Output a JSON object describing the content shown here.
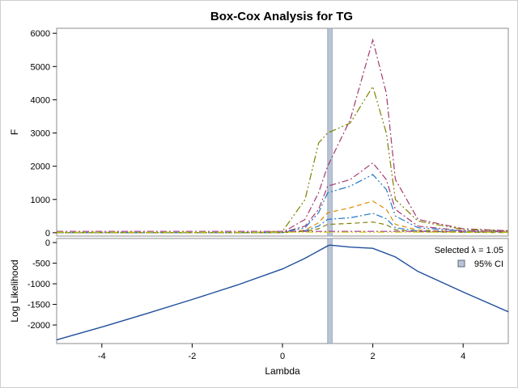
{
  "chart_data": [
    {
      "panel": "top",
      "type": "line",
      "title": "Box-Cox Analysis for TG",
      "ylabel": "F",
      "xlim": [
        -5,
        5
      ],
      "ylim": [
        -100,
        6150
      ],
      "yticks": [
        "0",
        "1000",
        "2000",
        "3000",
        "4000",
        "5000",
        "6000"
      ],
      "yticks_values": [
        0,
        1000,
        2000,
        3000,
        4000,
        5000,
        6000
      ],
      "x": [
        -5,
        -4,
        -3,
        -2,
        -1,
        0,
        0.5,
        0.8,
        1,
        1.5,
        2,
        2.3,
        2.5,
        3,
        4,
        5
      ],
      "series": [
        {
          "color": "#a23a6e",
          "dash": "8 3 2 3",
          "values": [
            0,
            0,
            0,
            0,
            0,
            10,
            400,
            1200,
            2000,
            3400,
            5800,
            4200,
            1600,
            400,
            120,
            60
          ]
        },
        {
          "color": "#7f7f00",
          "dash": "9 3 2 3 2 3",
          "values": [
            0,
            0,
            0,
            0,
            0,
            40,
            1000,
            2700,
            3000,
            3300,
            4400,
            3000,
            1000,
            350,
            100,
            50
          ]
        },
        {
          "color": "#a23a6e",
          "dash": "8 3 2 3",
          "values": [
            0,
            0,
            0,
            0,
            0,
            10,
            200,
            700,
            1400,
            1600,
            2100,
            1600,
            700,
            200,
            60,
            30
          ]
        },
        {
          "color": "#1f77c4",
          "dash": "9 3 2 3 2 3",
          "values": [
            0,
            0,
            0,
            0,
            0,
            10,
            150,
            600,
            1200,
            1400,
            1750,
            1300,
            500,
            150,
            50,
            20
          ]
        },
        {
          "color": "#d98c00",
          "dash": "6 4",
          "values": [
            0,
            0,
            0,
            0,
            0,
            5,
            80,
            300,
            600,
            750,
            950,
            700,
            250,
            80,
            30,
            10
          ]
        },
        {
          "color": "#1f77c4",
          "dash": "8 3 2 3",
          "values": [
            0,
            0,
            0,
            0,
            0,
            5,
            60,
            200,
            400,
            450,
            580,
            420,
            150,
            50,
            20,
            10
          ]
        },
        {
          "color": "#7f7f00",
          "dash": "6 4",
          "values": [
            0,
            0,
            0,
            0,
            0,
            5,
            40,
            120,
            250,
            280,
            320,
            240,
            90,
            30,
            10,
            5
          ]
        },
        {
          "color": "#9a2fb8",
          "dash": "8 3 2 3",
          "values": [
            40,
            40,
            40,
            40,
            40,
            40,
            40,
            40,
            40,
            40,
            40,
            40,
            40,
            40,
            40,
            40
          ]
        },
        {
          "color": "#d6c800",
          "dash": "9 3 2 3 2 3",
          "values": [
            20,
            20,
            20,
            20,
            20,
            20,
            20,
            20,
            20,
            20,
            20,
            20,
            20,
            20,
            20,
            20
          ]
        }
      ]
    },
    {
      "panel": "bottom",
      "type": "line",
      "xlabel": "Lambda",
      "ylabel": "Log Likelihood",
      "xlim": [
        -5,
        5
      ],
      "ylim": [
        -2450,
        100
      ],
      "yticks": [
        "0",
        "-500",
        "-1000",
        "-1500",
        "-2000"
      ],
      "yticks_values": [
        0,
        -500,
        -1000,
        -1500,
        -2000
      ],
      "xticks": [
        "-4",
        "-2",
        "0",
        "2",
        "4"
      ],
      "xticks_values": [
        -4,
        -2,
        0,
        2,
        4
      ],
      "x": [
        -5,
        -4,
        -3,
        -2,
        -1,
        0,
        0.5,
        1,
        1.05,
        1.5,
        2,
        2.5,
        3,
        4,
        5
      ],
      "series": [
        {
          "name": "Log Likelihood",
          "color": "#1f4e9c",
          "values": [
            -2360,
            -2050,
            -1720,
            -1380,
            -1030,
            -640,
            -380,
            -80,
            -60,
            -110,
            -140,
            -350,
            -700,
            -1200,
            -1680
          ]
        }
      ],
      "selected_lambda": 1.05,
      "ci": [
        1.0,
        1.1
      ],
      "legend": {
        "selected_label": "Selected λ = 1.05",
        "ci_label": "95% CI",
        "position": "top-right"
      },
      "ci_color": "#b9c4d6"
    }
  ]
}
